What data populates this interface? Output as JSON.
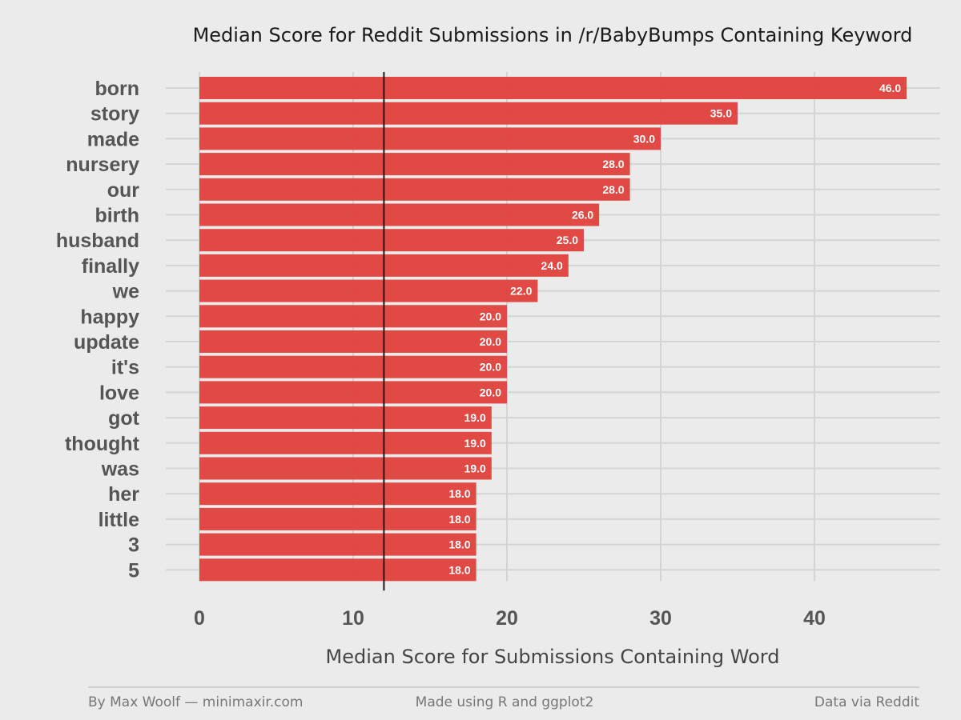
{
  "chart_data": {
    "type": "bar",
    "orientation": "horizontal",
    "title": "Median Score for Reddit Submissions in /r/BabyBumps Containing Keyword",
    "xlabel": "Median Score for Submissions Containing Word",
    "ylabel": "",
    "categories": [
      "born",
      "story",
      "made",
      "nursery",
      "our",
      "birth",
      "husband",
      "finally",
      "we",
      "happy",
      "update",
      "it's",
      "love",
      "got",
      "thought",
      "was",
      "her",
      "little",
      "3",
      "5"
    ],
    "values": [
      46.0,
      35.0,
      30.0,
      28.0,
      28.0,
      26.0,
      25.0,
      24.0,
      22.0,
      20.0,
      20.0,
      20.0,
      20.0,
      19.0,
      19.0,
      19.0,
      18.0,
      18.0,
      18.0,
      18.0
    ],
    "value_labels": [
      "46.0",
      "35.0",
      "30.0",
      "28.0",
      "28.0",
      "26.0",
      "25.0",
      "24.0",
      "22.0",
      "20.0",
      "20.0",
      "20.0",
      "20.0",
      "19.0",
      "19.0",
      "19.0",
      "18.0",
      "18.0",
      "18.0",
      "18.0"
    ],
    "xlim": [
      0,
      48
    ],
    "xticks": [
      0,
      10,
      20,
      30,
      40
    ],
    "xtick_labels": [
      "0",
      "10",
      "20",
      "30",
      "40"
    ],
    "reference_line_x": 12,
    "grid": true,
    "bar_color": "#e0413b",
    "reference_line_color": "#1a1a1a",
    "background_color": "#ebebeb",
    "grid_color": "#d4d4d4"
  },
  "footer": {
    "left": "By Max Woolf — minimaxir.com",
    "center": "Made using R and ggplot2",
    "right": "Data via Reddit"
  }
}
